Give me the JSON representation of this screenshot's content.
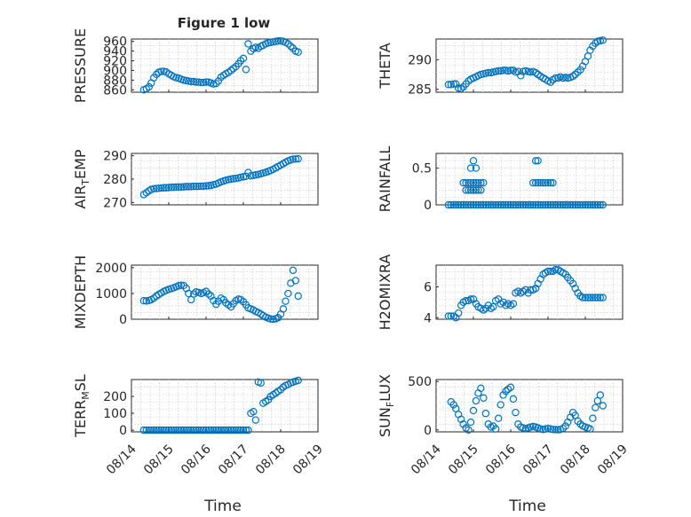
{
  "figure": {
    "title": "Figure 1 low",
    "x_label": "Time",
    "marker_color": "#0072BD",
    "x_tick_labels": [
      "08/14",
      "08/15",
      "08/16",
      "08/17",
      "08/18",
      "08/19"
    ]
  },
  "chart_data": [
    {
      "type": "scatter",
      "ylabel": "PRESSURE",
      "xlim": [
        0,
        5
      ],
      "ylim": [
        855,
        965
      ],
      "yticks": [
        860,
        880,
        900,
        920,
        940,
        960
      ],
      "grid": true,
      "x": [
        0.33,
        0.4,
        0.47,
        0.53,
        0.6,
        0.67,
        0.73,
        0.8,
        0.87,
        0.93,
        1.0,
        1.07,
        1.13,
        1.2,
        1.27,
        1.33,
        1.4,
        1.47,
        1.53,
        1.6,
        1.67,
        1.73,
        1.8,
        1.87,
        1.93,
        2.0,
        2.07,
        2.13,
        2.2,
        2.27,
        2.33,
        2.4,
        2.47,
        2.53,
        2.6,
        2.67,
        2.73,
        2.8,
        2.87,
        2.93,
        3.0,
        3.07,
        3.13,
        3.2,
        3.27,
        3.33,
        3.4,
        3.47,
        3.53,
        3.6,
        3.67,
        3.73,
        3.8,
        3.87,
        3.93,
        4.0,
        4.07,
        4.13,
        4.2,
        4.27,
        4.33,
        4.4,
        4.47
      ],
      "y": [
        860,
        862,
        866,
        874,
        885,
        892,
        896,
        898,
        898,
        897,
        893,
        890,
        887,
        885,
        884,
        882,
        880,
        879,
        878,
        877,
        877,
        876,
        876,
        875,
        875,
        876,
        876,
        874,
        872,
        873,
        878,
        886,
        890,
        893,
        896,
        900,
        904,
        908,
        914,
        920,
        925,
        902,
        955,
        940,
        945,
        948,
        946,
        950,
        952,
        955,
        957,
        958,
        959,
        960,
        961,
        961,
        960,
        958,
        955,
        950,
        946,
        940,
        938
      ]
    },
    {
      "type": "scatter",
      "ylabel": "THETA",
      "xlim": [
        0,
        5
      ],
      "ylim": [
        284.5,
        293.5
      ],
      "yticks": [
        285,
        290
      ],
      "grid": true,
      "x": [
        0.33,
        0.4,
        0.47,
        0.53,
        0.6,
        0.67,
        0.73,
        0.8,
        0.87,
        0.93,
        1.0,
        1.07,
        1.13,
        1.2,
        1.27,
        1.33,
        1.4,
        1.47,
        1.53,
        1.6,
        1.67,
        1.73,
        1.8,
        1.87,
        1.93,
        2.0,
        2.07,
        2.13,
        2.2,
        2.27,
        2.33,
        2.4,
        2.47,
        2.53,
        2.6,
        2.67,
        2.73,
        2.8,
        2.87,
        2.93,
        3.0,
        3.07,
        3.13,
        3.2,
        3.27,
        3.33,
        3.4,
        3.47,
        3.53,
        3.6,
        3.67,
        3.73,
        3.8,
        3.87,
        3.93,
        4.0,
        4.07,
        4.13,
        4.2,
        4.27,
        4.33,
        4.4,
        4.47
      ],
      "y": [
        285.8,
        285.8,
        285.9,
        285.9,
        285.2,
        285.1,
        285.4,
        285.9,
        286.4,
        286.7,
        286.9,
        287.1,
        287.3,
        287.5,
        287.6,
        287.7,
        287.8,
        287.8,
        287.9,
        288.0,
        288.1,
        288.1,
        288.2,
        288.2,
        288.1,
        288.2,
        288.2,
        287.9,
        288.0,
        287.3,
        288.0,
        288.1,
        288.0,
        287.9,
        288.0,
        287.8,
        287.5,
        287.2,
        286.9,
        286.7,
        286.4,
        286.2,
        286.6,
        286.9,
        286.9,
        287.1,
        286.9,
        287.0,
        286.9,
        287.0,
        287.2,
        287.5,
        287.9,
        288.3,
        288.9,
        289.7,
        290.6,
        291.6,
        292.3,
        292.8,
        293.1,
        293.2,
        293.3
      ]
    },
    {
      "type": "scatter",
      "ylabel": "AIR",
      "ylabel_sub": "T",
      "ylabel_rest": "EMP",
      "xlim": [
        0,
        5
      ],
      "ylim": [
        269,
        291
      ],
      "yticks": [
        270,
        280,
        290
      ],
      "grid": true,
      "x": [
        0.33,
        0.4,
        0.47,
        0.53,
        0.6,
        0.67,
        0.73,
        0.8,
        0.87,
        0.93,
        1.0,
        1.07,
        1.13,
        1.2,
        1.27,
        1.33,
        1.4,
        1.47,
        1.53,
        1.6,
        1.67,
        1.73,
        1.8,
        1.87,
        1.93,
        2.0,
        2.07,
        2.13,
        2.2,
        2.27,
        2.33,
        2.4,
        2.47,
        2.53,
        2.6,
        2.67,
        2.73,
        2.8,
        2.87,
        2.93,
        3.0,
        3.07,
        3.13,
        3.2,
        3.27,
        3.33,
        3.4,
        3.47,
        3.53,
        3.6,
        3.67,
        3.73,
        3.8,
        3.87,
        3.93,
        4.0,
        4.07,
        4.13,
        4.2,
        4.27,
        4.33,
        4.4,
        4.47
      ],
      "y": [
        273.4,
        274.2,
        275.0,
        275.6,
        275.9,
        276.0,
        276.1,
        276.2,
        276.3,
        276.3,
        276.4,
        276.5,
        276.5,
        276.6,
        276.6,
        276.6,
        276.7,
        276.8,
        276.8,
        276.8,
        276.9,
        276.9,
        276.9,
        277.0,
        277.0,
        277.1,
        277.2,
        277.3,
        277.6,
        277.9,
        278.3,
        278.8,
        279.2,
        279.5,
        279.8,
        280.0,
        280.2,
        280.3,
        280.5,
        280.8,
        281.0,
        281.2,
        282.8,
        281.4,
        281.6,
        281.8,
        282.0,
        282.3,
        282.6,
        282.9,
        283.3,
        283.7,
        284.2,
        284.8,
        285.4,
        286.0,
        286.6,
        287.2,
        287.8,
        288.2,
        288.5,
        288.6,
        288.7
      ]
    },
    {
      "type": "scatter",
      "ylabel": "RAINFALL",
      "xlim": [
        0,
        5
      ],
      "ylim": [
        0,
        0.7
      ],
      "yticks": [
        0,
        0.5
      ],
      "grid": true,
      "x": [
        0.33,
        0.4,
        0.47,
        0.53,
        0.6,
        0.67,
        0.73,
        0.8,
        0.87,
        0.93,
        1.0,
        1.07,
        1.13,
        1.2,
        1.27,
        1.33,
        1.4,
        1.47,
        1.53,
        1.6,
        1.67,
        1.73,
        1.8,
        1.87,
        1.93,
        2.0,
        2.07,
        2.13,
        2.2,
        2.27,
        2.33,
        2.4,
        2.47,
        2.53,
        2.6,
        2.67,
        2.73,
        2.8,
        2.87,
        2.93,
        3.0,
        3.07,
        3.13,
        3.2,
        3.27,
        3.33,
        3.4,
        3.47,
        3.53,
        3.6,
        3.67,
        3.73,
        3.8,
        3.87,
        3.93,
        4.0,
        4.07,
        4.13,
        4.2,
        4.27,
        4.33,
        4.4,
        4.47,
        0.73,
        0.8,
        0.87,
        0.93,
        1.0,
        1.07,
        1.13,
        1.2,
        1.27,
        0.8,
        0.87,
        0.93,
        1.0,
        1.07,
        1.13,
        1.2,
        0.93,
        1.07,
        1.0,
        2.6,
        2.67,
        2.73,
        2.8,
        2.87,
        2.93,
        3.0,
        3.07,
        3.13,
        2.67,
        2.73
      ],
      "y": [
        0,
        0,
        0,
        0,
        0,
        0,
        0,
        0,
        0,
        0,
        0,
        0,
        0,
        0,
        0,
        0,
        0,
        0,
        0,
        0,
        0,
        0,
        0,
        0,
        0,
        0,
        0,
        0,
        0,
        0,
        0,
        0,
        0,
        0,
        0,
        0,
        0,
        0,
        0,
        0,
        0,
        0,
        0,
        0,
        0,
        0,
        0,
        0,
        0,
        0,
        0,
        0,
        0,
        0,
        0,
        0,
        0,
        0,
        0,
        0,
        0,
        0,
        0,
        0.3,
        0.3,
        0.3,
        0.3,
        0.3,
        0.3,
        0.3,
        0.3,
        0.3,
        0.2,
        0.2,
        0.2,
        0.2,
        0.2,
        0.2,
        0.2,
        0.5,
        0.5,
        0.6,
        0.3,
        0.3,
        0.3,
        0.3,
        0.3,
        0.3,
        0.3,
        0.3,
        0.3,
        0.6,
        0.6
      ]
    },
    {
      "type": "scatter",
      "ylabel": "MIXDEPTH",
      "xlim": [
        0,
        5
      ],
      "ylim": [
        0,
        2100
      ],
      "yticks": [
        0,
        1000,
        2000
      ],
      "grid": true,
      "x": [
        0.33,
        0.4,
        0.47,
        0.53,
        0.6,
        0.67,
        0.73,
        0.8,
        0.87,
        0.93,
        1.0,
        1.07,
        1.13,
        1.2,
        1.27,
        1.33,
        1.4,
        1.47,
        1.53,
        1.6,
        1.67,
        1.73,
        1.8,
        1.87,
        1.93,
        2.0,
        2.07,
        2.13,
        2.2,
        2.27,
        2.33,
        2.4,
        2.47,
        2.53,
        2.6,
        2.67,
        2.73,
        2.8,
        2.87,
        2.93,
        3.0,
        3.07,
        3.13,
        3.2,
        3.27,
        3.33,
        3.4,
        3.47,
        3.53,
        3.6,
        3.67,
        3.73,
        3.8,
        3.87,
        3.93,
        4.0,
        4.07,
        4.13,
        4.2,
        4.27,
        4.33,
        4.4,
        4.47
      ],
      "y": [
        720,
        710,
        730,
        760,
        820,
        900,
        960,
        1020,
        1080,
        1120,
        1160,
        1190,
        1220,
        1260,
        1300,
        1320,
        1310,
        1200,
        1000,
        760,
        980,
        1060,
        1040,
        1000,
        1030,
        1080,
        980,
        900,
        720,
        580,
        700,
        820,
        760,
        640,
        560,
        480,
        600,
        720,
        780,
        760,
        680,
        560,
        440,
        400,
        360,
        300,
        260,
        200,
        140,
        80,
        40,
        10,
        0,
        20,
        60,
        200,
        400,
        700,
        1000,
        1400,
        1900,
        1500,
        900
      ]
    },
    {
      "type": "scatter",
      "ylabel": "H2OMIXRA",
      "xlim": [
        0,
        5
      ],
      "ylim": [
        3.9,
        7.4
      ],
      "yticks": [
        4,
        6
      ],
      "grid": true,
      "x": [
        0.33,
        0.4,
        0.47,
        0.53,
        0.6,
        0.67,
        0.73,
        0.8,
        0.87,
        0.93,
        1.0,
        1.07,
        1.13,
        1.2,
        1.27,
        1.33,
        1.4,
        1.47,
        1.53,
        1.6,
        1.67,
        1.73,
        1.8,
        1.87,
        1.93,
        2.0,
        2.07,
        2.13,
        2.2,
        2.27,
        2.33,
        2.4,
        2.47,
        2.53,
        2.6,
        2.67,
        2.73,
        2.8,
        2.87,
        2.93,
        3.0,
        3.07,
        3.13,
        3.2,
        3.27,
        3.33,
        3.4,
        3.47,
        3.53,
        3.6,
        3.67,
        3.73,
        3.8,
        3.87,
        3.93,
        4.0,
        4.07,
        4.13,
        4.2,
        4.27,
        4.33,
        4.4,
        4.47
      ],
      "y": [
        4.1,
        4.1,
        4.1,
        4.0,
        4.3,
        4.8,
        5.0,
        5.1,
        5.1,
        5.2,
        5.2,
        4.9,
        4.7,
        4.6,
        4.5,
        4.6,
        4.8,
        4.6,
        4.7,
        5.1,
        5.2,
        4.9,
        5.0,
        4.8,
        4.9,
        4.8,
        4.9,
        5.6,
        5.7,
        5.6,
        5.7,
        5.8,
        5.6,
        5.8,
        5.8,
        5.9,
        6.2,
        6.5,
        6.8,
        6.9,
        7.0,
        7.0,
        7.0,
        7.1,
        7.1,
        7.0,
        6.9,
        6.8,
        6.6,
        6.4,
        6.2,
        5.9,
        5.6,
        5.4,
        5.3,
        5.3,
        5.3,
        5.3,
        5.3,
        5.3,
        5.3,
        5.3,
        5.3
      ]
    },
    {
      "type": "scatter",
      "ylabel": "TERR",
      "ylabel_sub": "M",
      "ylabel_rest": "SL",
      "xlim": [
        0,
        5
      ],
      "ylim": [
        -10,
        300
      ],
      "yticks": [
        0,
        100,
        200
      ],
      "grid": true,
      "x": [
        0.33,
        0.4,
        0.47,
        0.53,
        0.6,
        0.67,
        0.73,
        0.8,
        0.87,
        0.93,
        1.0,
        1.07,
        1.13,
        1.2,
        1.27,
        1.33,
        1.4,
        1.47,
        1.53,
        1.6,
        1.67,
        1.73,
        1.8,
        1.87,
        1.93,
        2.0,
        2.07,
        2.13,
        2.2,
        2.27,
        2.33,
        2.4,
        2.47,
        2.53,
        2.6,
        2.67,
        2.73,
        2.8,
        2.87,
        2.93,
        3.0,
        3.07,
        3.13,
        3.2,
        3.27,
        3.33,
        3.4,
        3.47,
        3.53,
        3.6,
        3.67,
        3.73,
        3.8,
        3.87,
        3.93,
        4.0,
        4.07,
        4.13,
        4.2,
        4.27,
        4.33,
        4.4,
        4.47
      ],
      "y": [
        0,
        0,
        0,
        0,
        0,
        0,
        0,
        0,
        0,
        0,
        0,
        0,
        0,
        0,
        0,
        0,
        0,
        0,
        0,
        0,
        0,
        0,
        0,
        0,
        0,
        0,
        0,
        0,
        0,
        0,
        0,
        0,
        0,
        0,
        0,
        0,
        0,
        0,
        0,
        0,
        0,
        0,
        0,
        100,
        110,
        60,
        285,
        280,
        160,
        170,
        180,
        200,
        210,
        220,
        230,
        240,
        255,
        265,
        270,
        280,
        285,
        290,
        295
      ]
    },
    {
      "type": "scatter",
      "ylabel": "SUN",
      "ylabel_sub": "F",
      "ylabel_rest": "LUX",
      "xlim": [
        0,
        5
      ],
      "ylim": [
        -20,
        520
      ],
      "yticks": [
        0,
        500
      ],
      "grid": true,
      "x": [
        0.4,
        0.47,
        0.53,
        0.6,
        0.67,
        0.73,
        0.8,
        0.87,
        0.93,
        1.0,
        1.07,
        1.13,
        1.2,
        1.27,
        1.33,
        1.4,
        1.47,
        1.53,
        1.6,
        1.67,
        1.73,
        1.8,
        1.87,
        1.93,
        2.0,
        2.07,
        2.13,
        2.2,
        2.27,
        2.33,
        2.4,
        2.47,
        2.53,
        2.6,
        2.67,
        2.73,
        2.8,
        2.87,
        2.93,
        3.0,
        3.07,
        3.13,
        3.2,
        3.27,
        3.33,
        3.4,
        3.47,
        3.53,
        3.6,
        3.67,
        3.73,
        3.8,
        3.87,
        3.93,
        4.0,
        4.07,
        4.13,
        4.2,
        4.27,
        4.33,
        4.4,
        4.47
      ],
      "y": [
        290,
        260,
        220,
        160,
        110,
        60,
        20,
        0,
        80,
        200,
        300,
        380,
        430,
        330,
        170,
        60,
        30,
        40,
        10,
        120,
        260,
        360,
        400,
        420,
        440,
        320,
        180,
        60,
        30,
        20,
        15,
        20,
        30,
        35,
        30,
        20,
        10,
        5,
        10,
        15,
        10,
        5,
        3,
        2,
        5,
        15,
        40,
        80,
        130,
        180,
        150,
        90,
        60,
        40,
        30,
        20,
        10,
        120,
        230,
        300,
        360,
        250
      ]
    }
  ]
}
